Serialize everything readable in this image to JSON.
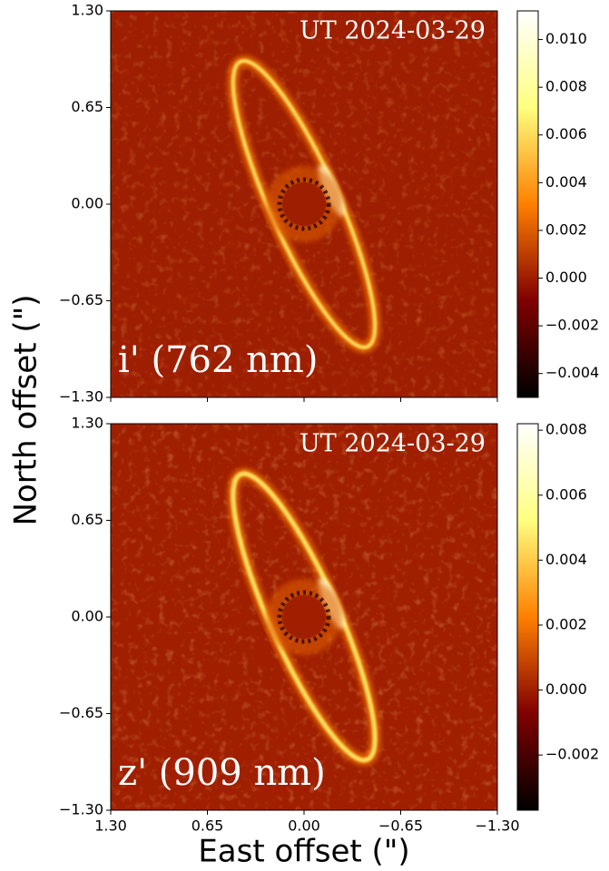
{
  "chart_data": [
    {
      "type": "image",
      "colormap": "afmhot",
      "date_label": "UT 2024-03-29",
      "band_label": "i' (762 nm)",
      "ylabel": "North offset (\")",
      "xlim": [
        1.3,
        -1.3
      ],
      "ylim": [
        -1.3,
        1.3
      ],
      "xticks": [
        {
          "value": 1.3,
          "label": "1.30"
        },
        0.65,
        {
          "value": 0,
          "label": "0.00"
        },
        {
          "value": -0.65,
          "label": "−0.65"
        },
        {
          "value": -1.3,
          "label": "−1.30"
        }
      ],
      "xticklabels": false,
      "yticks": [
        {
          "value": -1.3,
          "label": "−1.30"
        },
        {
          "value": -0.65,
          "label": "−0.65"
        },
        {
          "value": 0,
          "label": "0.00"
        },
        0.65,
        {
          "value": 1.3,
          "label": "1.30"
        }
      ],
      "clim": [
        -0.005,
        0.0112
      ],
      "cticks": [
        {
          "value": -0.004,
          "label": "−0.004"
        },
        {
          "value": -0.002,
          "label": "−0.002"
        },
        {
          "value": 0,
          "label": "0.000"
        },
        0.002,
        0.004,
        0.006,
        0.008,
        {
          "value": 0.01,
          "label": "0.010"
        }
      ]
    },
    {
      "type": "image",
      "colormap": "afmhot",
      "date_label": "UT 2024-03-29",
      "band_label": "z' (909 nm)",
      "xlabel": "East offset (\")",
      "xlim": [
        1.3,
        -1.3
      ],
      "ylim": [
        -1.3,
        1.3
      ],
      "xticks": [
        {
          "value": 1.3,
          "label": "1.30"
        },
        0.65,
        {
          "value": 0,
          "label": "0.00"
        },
        {
          "value": -0.65,
          "label": "−0.65"
        },
        {
          "value": -1.3,
          "label": "−1.30"
        }
      ],
      "xticklabels": true,
      "yticks": [
        {
          "value": -1.3,
          "label": "−1.30"
        },
        {
          "value": -0.65,
          "label": "−0.65"
        },
        {
          "value": 0,
          "label": "0.00"
        },
        0.65,
        {
          "value": 1.3,
          "label": "1.30"
        }
      ],
      "clim": [
        -0.0037,
        0.0082
      ],
      "cticks": [
        {
          "value": -0.002,
          "label": "−0.002"
        },
        {
          "value": 0,
          "label": "0.000"
        },
        0.002,
        0.004,
        0.006,
        0.008
      ]
    }
  ]
}
